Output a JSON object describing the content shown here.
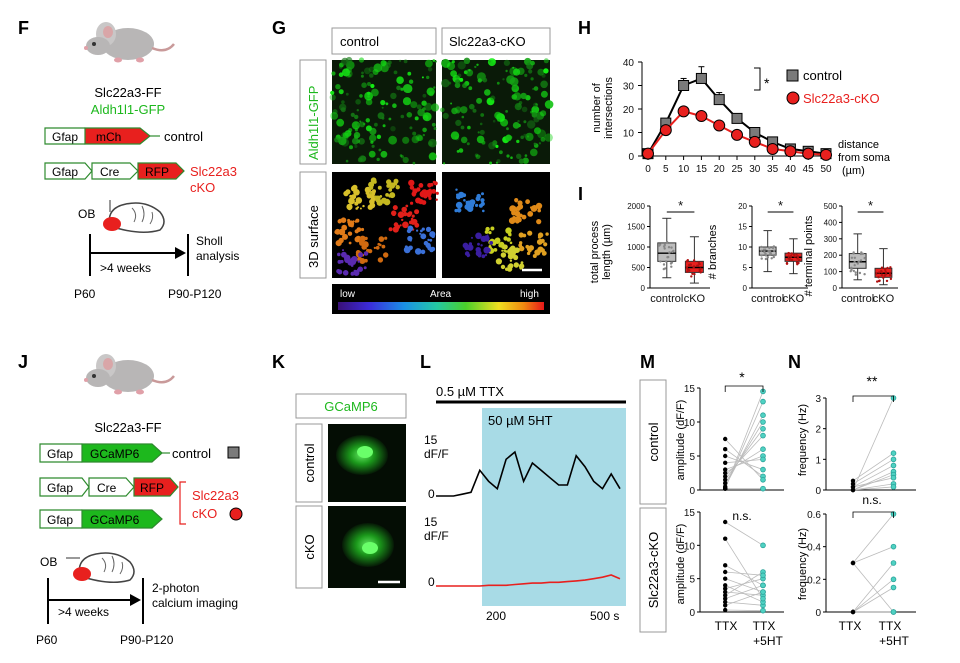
{
  "panels": {
    "F": "F",
    "G": "G",
    "H": "H",
    "I": "I",
    "J": "J",
    "K": "K",
    "L": "L",
    "M": "M",
    "N": "N"
  },
  "colors": {
    "green": "#1db81d",
    "red": "#e8201e",
    "teal": "#2aa39a",
    "gray": "#777777",
    "cyan_bg": "#a8dbe6"
  },
  "F": {
    "line_name": "Slc22a3-FF",
    "reporter": "Aldh1l1-GFP",
    "c1_promoter": "Gfap",
    "c1_gene": "mCh",
    "c1_label": "control",
    "c2_promoter": "Gfap",
    "c2_gene1": "Cre",
    "c2_gene2": "RFP",
    "c2_label_a": "Slc22a3",
    "c2_label_b": "cKO",
    "ob": "OB",
    "interval": ">4 weeks",
    "endpoint_a": "Sholl",
    "endpoint_b": "analysis",
    "t0": "P60",
    "t1": "P90-P120"
  },
  "G": {
    "col_control": "control",
    "col_cko": "Slc22a3-cKO",
    "row_gfp": "Aldh1l1-GFP",
    "row_surface": "3D surface",
    "scale_low": "low",
    "scale_mid": "Area",
    "scale_high": "high"
  },
  "H": {
    "ylabel_a": "number of",
    "ylabel_b": "intersections",
    "xlabel_a": "distance",
    "xlabel_b": "from soma",
    "xlabel_c": "(µm)",
    "sig": "*",
    "legend_control": "control",
    "legend_cko": "Slc22a3-cKO"
  },
  "I": {
    "a_ylabel_a": "total process",
    "a_ylabel_b": "length (µm)",
    "b_ylabel": "# branches",
    "c_ylabel": "# terminal points",
    "xcat_control": "control",
    "xcat_cko": "cKO",
    "sig": "*"
  },
  "J": {
    "line_name": "Slc22a3-FF",
    "c1_promoter": "Gfap",
    "c1_gene": "GCaMP6",
    "c1_label": "control",
    "c2_promoter": "Gfap",
    "c2_gene1": "Cre",
    "c2_gene2": "RFP",
    "c3_promoter": "Gfap",
    "c3_gene": "GCaMP6",
    "c23_label_a": "Slc22a3",
    "c23_label_b": "cKO",
    "ob": "OB",
    "interval": ">4 weeks",
    "endpoint_a": "2-photon",
    "endpoint_b": "calcium imaging",
    "t0": "P60",
    "t1": "P90-P120"
  },
  "K": {
    "title": "GCaMP6",
    "row_control": "control",
    "row_cko": "cKO"
  },
  "L": {
    "ttx": "0.5 µM TTX",
    "ht": "50 µM 5HT",
    "scale_a": "15",
    "scale_b": "dF/F",
    "zero": "0",
    "t200": "200",
    "t500": "500 s"
  },
  "M": {
    "row_control": "control",
    "row_cko": "Slc22a3-cKO",
    "ylabel": "amplitude (dF/F)",
    "sig_top": "*",
    "sig_bottom": "n.s.",
    "x_ttx": "TTX",
    "x_ht_a": "TTX",
    "x_ht_b": "+5HT"
  },
  "N": {
    "ylabel": "frequency (Hz)",
    "sig_top": "**",
    "sig_bottom": "n.s.",
    "x_ttx": "TTX",
    "x_ht_a": "TTX",
    "x_ht_b": "+5HT"
  },
  "chart_data": [
    {
      "type": "line",
      "panel": "H",
      "x": [
        0,
        5,
        10,
        15,
        20,
        25,
        30,
        35,
        40,
        45,
        50
      ],
      "xlim": [
        0,
        50
      ],
      "ylim": [
        0,
        40
      ],
      "xticks": [
        0,
        5,
        10,
        15,
        20,
        25,
        30,
        35,
        40,
        45,
        50
      ],
      "yticks": [
        0,
        10,
        20,
        30,
        40
      ],
      "series": [
        {
          "name": "control",
          "values": [
            1,
            14,
            30,
            33,
            24,
            16,
            10,
            6,
            3,
            2,
            1
          ],
          "errors": [
            0,
            1.5,
            3,
            5,
            3,
            1.5,
            1,
            1,
            0.5,
            0.5,
            0.5
          ]
        },
        {
          "name": "Slc22a3-cKO",
          "values": [
            1,
            11,
            19,
            17,
            13,
            9,
            6,
            3,
            2,
            1,
            0.5
          ],
          "errors": [
            0,
            1,
            1.5,
            1.5,
            1.5,
            1,
            1,
            0.5,
            0.5,
            0.3,
            0.3
          ]
        }
      ],
      "legend": "top-right"
    },
    {
      "type": "box",
      "panel": "I-a",
      "categories": [
        "control",
        "cKO"
      ],
      "ylim": [
        0,
        2000
      ],
      "yticks": [
        0,
        500,
        1000,
        1500,
        2000
      ],
      "boxes": [
        {
          "q1": 650,
          "median": 850,
          "q3": 1100,
          "min": 250,
          "max": 1700
        },
        {
          "q1": 380,
          "median": 500,
          "q3": 650,
          "min": 120,
          "max": 1250
        }
      ]
    },
    {
      "type": "box",
      "panel": "I-b",
      "categories": [
        "control",
        "cKO"
      ],
      "ylim": [
        0,
        20
      ],
      "yticks": [
        0,
        5,
        10,
        15,
        20
      ],
      "boxes": [
        {
          "q1": 8,
          "median": 9,
          "q3": 10,
          "min": 4,
          "max": 14
        },
        {
          "q1": 6.5,
          "median": 7.5,
          "q3": 8.5,
          "min": 3.5,
          "max": 12
        }
      ]
    },
    {
      "type": "box",
      "panel": "I-c",
      "categories": [
        "control",
        "cKO"
      ],
      "ylim": [
        0,
        500
      ],
      "yticks": [
        0,
        100,
        200,
        300,
        400,
        500
      ],
      "boxes": [
        {
          "q1": 120,
          "median": 160,
          "q3": 210,
          "min": 50,
          "max": 330
        },
        {
          "q1": 65,
          "median": 90,
          "q3": 120,
          "min": 20,
          "max": 240
        }
      ]
    },
    {
      "type": "line",
      "panel": "L",
      "xlabel": "",
      "x_ticks": [
        200,
        500
      ],
      "series": [
        {
          "name": "control",
          "values": [
            0,
            0,
            0,
            0.5,
            1,
            7,
            4,
            2,
            10,
            12,
            4,
            9,
            7,
            5,
            3,
            3,
            11,
            8,
            4,
            2,
            6,
            2
          ]
        },
        {
          "name": "cKO",
          "values": [
            0,
            0,
            0,
            0,
            0,
            0,
            0.2,
            0.2,
            0.2,
            0.4,
            0.6,
            0.8,
            0.8,
            1,
            1,
            1.2,
            1.4,
            1.6,
            2,
            2.4,
            3,
            2
          ]
        }
      ]
    },
    {
      "type": "scatter",
      "panel": "M-control",
      "categories": [
        "TTX",
        "TTX +5HT"
      ],
      "ylim": [
        0,
        15
      ],
      "yticks": [
        0,
        5,
        10,
        15
      ],
      "pairs": [
        [
          0.2,
          14.5
        ],
        [
          0.3,
          13
        ],
        [
          0.5,
          11
        ],
        [
          1,
          10
        ],
        [
          1.5,
          9
        ],
        [
          2,
          8
        ],
        [
          2.5,
          6
        ],
        [
          3,
          5
        ],
        [
          4,
          4.5
        ],
        [
          5,
          3
        ],
        [
          6,
          2
        ],
        [
          7.5,
          1.5
        ],
        [
          0.2,
          0.2
        ]
      ]
    },
    {
      "type": "scatter",
      "panel": "M-cKO",
      "categories": [
        "TTX",
        "TTX +5HT"
      ],
      "ylim": [
        0,
        15
      ],
      "yticks": [
        0,
        5,
        10,
        15
      ],
      "pairs": [
        [
          0.3,
          0.2
        ],
        [
          1,
          3
        ],
        [
          1.5,
          1
        ],
        [
          2,
          4
        ],
        [
          2.5,
          6
        ],
        [
          3,
          2.5
        ],
        [
          3.5,
          5
        ],
        [
          4,
          1.5
        ],
        [
          5,
          3
        ],
        [
          6,
          5.5
        ],
        [
          7,
          4
        ],
        [
          11,
          2
        ],
        [
          13.5,
          10
        ]
      ]
    },
    {
      "type": "scatter",
      "panel": "N-top",
      "categories": [
        "TTX",
        "TTX +5HT"
      ],
      "ylim": [
        0,
        3
      ],
      "yticks": [
        0,
        1,
        2,
        3
      ],
      "pairs": [
        [
          0,
          3
        ],
        [
          0.3,
          1.2
        ],
        [
          0.2,
          1
        ],
        [
          0.1,
          0.8
        ],
        [
          0,
          0.6
        ],
        [
          0,
          0.5
        ],
        [
          0.1,
          0.4
        ],
        [
          0,
          0.2
        ],
        [
          0,
          0.1
        ]
      ]
    },
    {
      "type": "scatter",
      "panel": "N-bottom",
      "categories": [
        "TTX",
        "TTX +5HT"
      ],
      "ylim": [
        0,
        0.6
      ],
      "yticks": [
        0,
        0.2,
        0.4,
        0.6
      ],
      "pairs": [
        [
          0.3,
          0.6
        ],
        [
          0.3,
          0.4
        ],
        [
          0,
          0.3
        ],
        [
          0,
          0.2
        ],
        [
          0,
          0.15
        ],
        [
          0,
          0
        ],
        [
          0.3,
          0
        ]
      ]
    }
  ]
}
